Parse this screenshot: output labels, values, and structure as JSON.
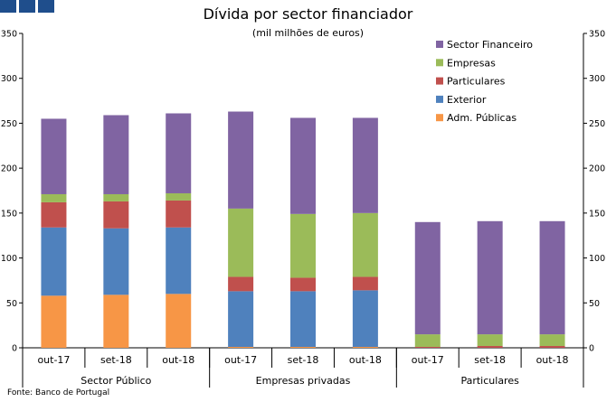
{
  "chart_data": {
    "type": "bar",
    "stacked": true,
    "title": "Dívida por sector financiador",
    "subtitle": "(mil milhões de euros)",
    "source": "Fonte: Banco de Portugal",
    "categories": [
      "out-17",
      "set-18",
      "out-18",
      "out-17",
      "set-18",
      "out-18",
      "out-17",
      "set-18",
      "out-18"
    ],
    "groups": [
      {
        "label": "Sector Público",
        "count": 3
      },
      {
        "label": "Empresas privadas",
        "count": 3
      },
      {
        "label": "Particulares",
        "count": 3
      }
    ],
    "ylim": [
      0,
      350
    ],
    "yticks": [
      0,
      50,
      100,
      150,
      200,
      250,
      300,
      350
    ],
    "y2ticks": [
      0,
      50,
      100,
      150,
      200,
      250,
      300,
      350
    ],
    "legend_position": "top-right",
    "series": [
      {
        "name": "Adm. Públicas",
        "color": "#f79646",
        "values": [
          58,
          59,
          60,
          1,
          1,
          1,
          0,
          0,
          0
        ]
      },
      {
        "name": "Exterior",
        "color": "#4f81bd",
        "values": [
          76,
          74,
          74,
          62,
          62,
          63,
          0,
          0,
          0
        ]
      },
      {
        "name": "Particulares",
        "color": "#c0504d",
        "values": [
          28,
          30,
          30,
          16,
          15,
          15,
          1,
          2,
          2
        ]
      },
      {
        "name": "Empresas",
        "color": "#9bbb59",
        "values": [
          9,
          8,
          8,
          76,
          71,
          71,
          14,
          13,
          13
        ]
      },
      {
        "name": "Sector Financeiro",
        "color": "#8064a2",
        "values": [
          84,
          88,
          89,
          108,
          107,
          106,
          125,
          126,
          126
        ]
      }
    ],
    "legend_order": [
      "Sector Financeiro",
      "Empresas",
      "Particulares",
      "Exterior",
      "Adm. Públicas"
    ]
  }
}
